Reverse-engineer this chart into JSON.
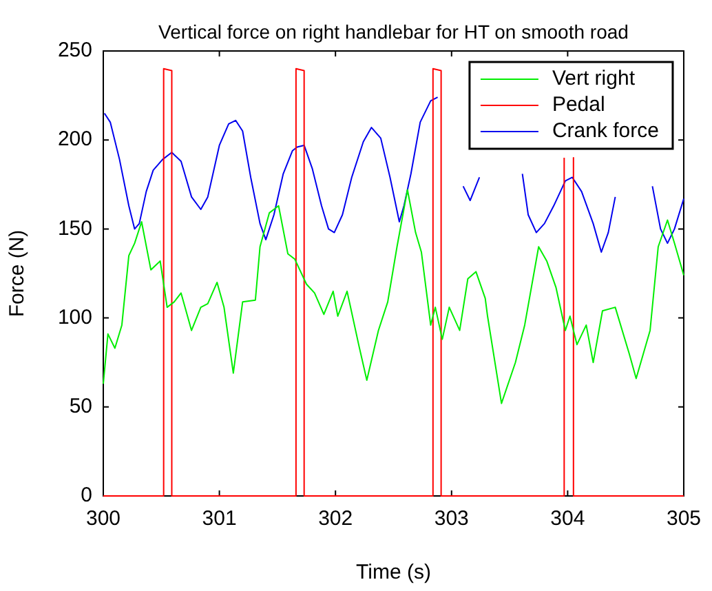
{
  "chart_data": {
    "type": "line",
    "title": "Vertical force on right handlebar for HT on smooth road",
    "xlabel": "Time (s)",
    "ylabel": "Force (N)",
    "xlim": [
      300,
      305
    ],
    "xticks": [
      300,
      301,
      302,
      303,
      304,
      305
    ],
    "ylim": [
      0,
      250
    ],
    "yticks": [
      0,
      50,
      100,
      150,
      200,
      250
    ],
    "grid": false,
    "legend": "top right",
    "marker": "none",
    "line_style": "solid",
    "series": [
      {
        "name": "Vert right",
        "color": "#00ee00",
        "x": [
          300.0,
          300.04,
          300.1,
          300.16,
          300.22,
          300.27,
          300.33,
          300.41,
          300.49,
          300.55,
          300.61,
          300.67,
          300.76,
          300.84,
          300.9,
          300.98,
          301.04,
          301.12,
          301.2,
          301.31,
          301.35,
          301.43,
          301.51,
          301.59,
          301.65,
          301.75,
          301.82,
          301.9,
          301.98,
          302.02,
          302.1,
          302.2,
          302.27,
          302.37,
          302.45,
          302.53,
          302.62,
          302.69,
          302.74,
          302.82,
          302.86,
          302.92,
          302.98,
          303.07,
          303.14,
          303.21,
          303.29,
          303.31,
          303.43,
          303.55,
          303.63,
          303.75,
          303.82,
          303.9,
          303.98,
          304.02,
          304.08,
          304.16,
          304.22,
          304.3,
          304.41,
          304.53,
          304.59,
          304.71,
          304.78,
          304.86,
          304.92,
          305.0
        ],
        "values": [
          63,
          91,
          83,
          96,
          135,
          142,
          154,
          127,
          132,
          106,
          109,
          114,
          93,
          106,
          108,
          120,
          106,
          69,
          109,
          110,
          140,
          159,
          163,
          136,
          133,
          119,
          114,
          102,
          115,
          101,
          115,
          85,
          65,
          93,
          109,
          140,
          172,
          148,
          137,
          96,
          106,
          88,
          106,
          93,
          122,
          126,
          111,
          101,
          52,
          75,
          96,
          140,
          132,
          117,
          93,
          101,
          85,
          96,
          75,
          104,
          106,
          80,
          66,
          93,
          140,
          155,
          142,
          124
        ]
      },
      {
        "name": "Pedal",
        "color": "#ff0000",
        "x": [
          300.0,
          300.52,
          300.52,
          300.59,
          300.59,
          301.65,
          301.66,
          301.73,
          301.73,
          302.84,
          302.84,
          302.91,
          302.91,
          303.97,
          303.97,
          304.01,
          304.05,
          304.05,
          305.0
        ],
        "values": [
          0,
          0,
          240,
          239,
          0,
          0,
          240,
          239,
          0,
          0,
          240,
          239,
          0,
          0,
          190,
          null,
          190,
          0,
          0
        ]
      },
      {
        "name": "Crank force",
        "color": "#0000ee",
        "x": [
          300.01,
          300.06,
          300.14,
          300.22,
          300.27,
          300.31,
          300.37,
          300.43,
          300.51,
          300.59,
          300.67,
          300.76,
          300.84,
          300.9,
          301.0,
          301.08,
          301.14,
          301.2,
          301.27,
          301.35,
          301.4,
          301.47,
          301.55,
          301.63,
          301.67,
          301.73,
          301.8,
          301.88,
          301.94,
          301.99,
          302.06,
          302.14,
          302.24,
          302.31,
          302.39,
          302.47,
          302.55,
          302.59,
          302.65,
          302.73,
          302.82,
          302.88,
          302.95,
          303.1,
          303.16,
          303.24,
          303.4,
          303.61,
          303.66,
          303.73,
          303.8,
          303.88,
          303.98,
          304.04,
          304.12,
          304.22,
          304.29,
          304.35,
          304.41,
          304.55,
          304.73,
          304.8,
          304.86,
          304.92,
          305.0
        ],
        "values": [
          215,
          210,
          189,
          163,
          150,
          153,
          171,
          183,
          189,
          193,
          188,
          168,
          161,
          168,
          197,
          209,
          211,
          205,
          179,
          153,
          144,
          158,
          181,
          194,
          196,
          197,
          184,
          163,
          150,
          148,
          158,
          179,
          199,
          207,
          201,
          179,
          154,
          163,
          181,
          210,
          222,
          224,
          null,
          174,
          166,
          179,
          null,
          181,
          158,
          148,
          153,
          163,
          177,
          179,
          171,
          153,
          137,
          148,
          168,
          null,
          174,
          150,
          142,
          150,
          167
        ]
      }
    ]
  }
}
